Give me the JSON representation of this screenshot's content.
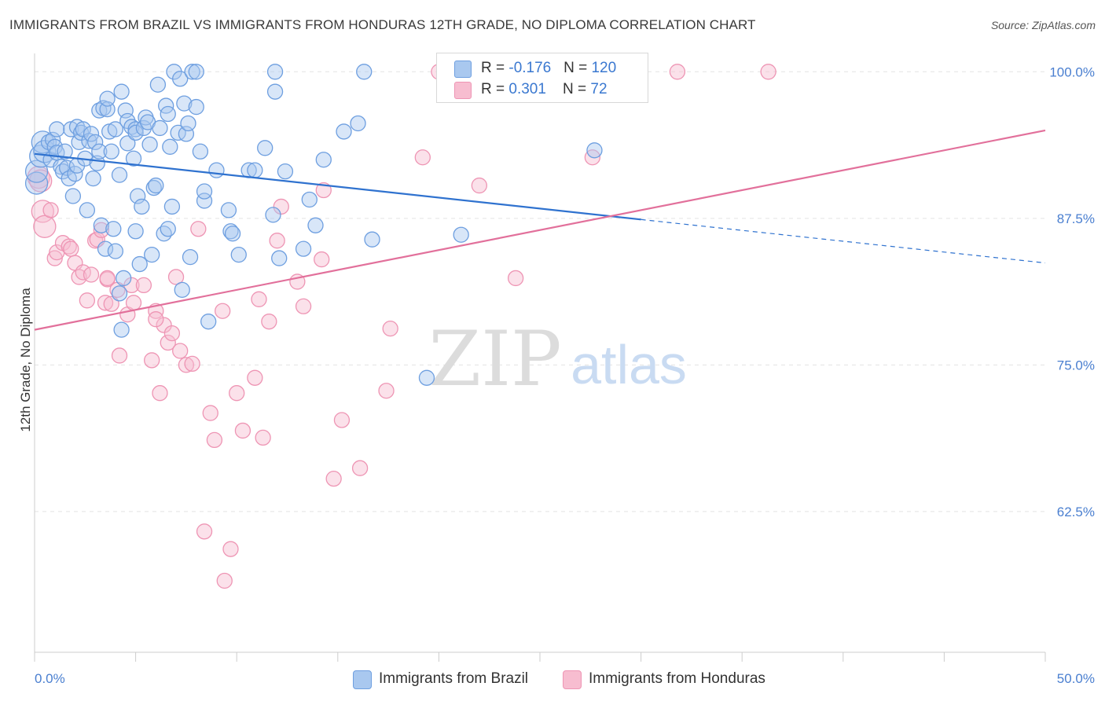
{
  "title": "IMMIGRANTS FROM BRAZIL VS IMMIGRANTS FROM HONDURAS 12TH GRADE, NO DIPLOMA CORRELATION CHART",
  "source": "Source: ZipAtlas.com",
  "watermark": {
    "zip": "ZIP",
    "atlas": "atlas"
  },
  "legend": {
    "rows": [
      {
        "r_label": "R = ",
        "r_value": "-0.176",
        "n_label": "N = ",
        "n_value": "120"
      },
      {
        "r_label": "R = ",
        "r_value": "0.301",
        "n_label": "N = ",
        "n_value": "72"
      }
    ]
  },
  "bottom_legend": [
    {
      "label": "Immigrants from Brazil"
    },
    {
      "label": "Immigrants from Honduras"
    }
  ],
  "colors": {
    "brazil_fill": "#a9c8ef",
    "brazil_stroke": "#6e9fe0",
    "brazil_line": "#2f72cf",
    "honduras_fill": "#f7bdd0",
    "honduras_stroke": "#ee95b4",
    "honduras_line": "#e2709b",
    "tick_label": "#4a7fd0",
    "grid": "#e3e3e3"
  },
  "chart_data": {
    "type": "scatter",
    "title": "IMMIGRANTS FROM BRAZIL VS IMMIGRANTS FROM HONDURAS 12TH GRADE, NO DIPLOMA CORRELATION CHART",
    "xlabel": "",
    "ylabel": "12th Grade, No Diploma",
    "xlim": [
      0,
      50
    ],
    "ylim": [
      50.5,
      102.5
    ],
    "x_tick_labels": [
      "0.0%",
      "50.0%"
    ],
    "y_ticks": [
      62.5,
      75.0,
      87.5,
      100.0
    ],
    "y_tick_labels": [
      "62.5%",
      "75.0%",
      "87.5%",
      "100.0%"
    ],
    "grid": true,
    "legend_position": "top-center",
    "series": [
      {
        "name": "Immigrants from Brazil",
        "r": -0.176,
        "n": 120,
        "trend": {
          "x": [
            0,
            30,
            50
          ],
          "y": [
            93.0,
            87.4,
            83.7
          ],
          "solid_until_x": 30
        },
        "points": [
          [
            0.1,
            90.5
          ],
          [
            0.1,
            91.5
          ],
          [
            0.3,
            92.8
          ],
          [
            0.4,
            94.0
          ],
          [
            0.5,
            93.2
          ],
          [
            0.7,
            94.0
          ],
          [
            0.8,
            92.5
          ],
          [
            0.9,
            94.2
          ],
          [
            1.0,
            93.6
          ],
          [
            1.1,
            93.1
          ],
          [
            1.1,
            95.1
          ],
          [
            1.3,
            91.9
          ],
          [
            1.4,
            91.5
          ],
          [
            1.5,
            93.2
          ],
          [
            1.6,
            91.8
          ],
          [
            1.7,
            90.9
          ],
          [
            1.8,
            95.1
          ],
          [
            1.9,
            89.4
          ],
          [
            2.0,
            91.3
          ],
          [
            2.1,
            92.0
          ],
          [
            2.1,
            95.3
          ],
          [
            2.2,
            94.0
          ],
          [
            2.3,
            94.8
          ],
          [
            2.4,
            95.1
          ],
          [
            2.5,
            92.6
          ],
          [
            2.6,
            88.2
          ],
          [
            2.7,
            94.1
          ],
          [
            2.8,
            94.7
          ],
          [
            2.9,
            90.9
          ],
          [
            3.0,
            94.0
          ],
          [
            3.1,
            92.2
          ],
          [
            3.2,
            96.7
          ],
          [
            3.2,
            93.2
          ],
          [
            3.3,
            86.9
          ],
          [
            3.4,
            96.9
          ],
          [
            3.5,
            84.9
          ],
          [
            3.6,
            96.8
          ],
          [
            3.6,
            97.7
          ],
          [
            3.7,
            94.9
          ],
          [
            3.8,
            93.2
          ],
          [
            3.9,
            86.6
          ],
          [
            4.0,
            84.7
          ],
          [
            4.0,
            95.1
          ],
          [
            4.2,
            91.2
          ],
          [
            4.2,
            81.1
          ],
          [
            4.3,
            98.3
          ],
          [
            4.3,
            78.0
          ],
          [
            4.4,
            82.4
          ],
          [
            4.5,
            96.7
          ],
          [
            4.6,
            93.9
          ],
          [
            4.6,
            95.8
          ],
          [
            4.8,
            95.3
          ],
          [
            4.9,
            92.6
          ],
          [
            5.0,
            95.1
          ],
          [
            5.0,
            94.8
          ],
          [
            5.0,
            86.4
          ],
          [
            5.1,
            89.4
          ],
          [
            5.2,
            83.6
          ],
          [
            5.3,
            88.5
          ],
          [
            5.4,
            95.2
          ],
          [
            5.5,
            96.1
          ],
          [
            5.6,
            95.7
          ],
          [
            5.7,
            93.8
          ],
          [
            5.8,
            84.4
          ],
          [
            5.9,
            90.1
          ],
          [
            6.0,
            90.3
          ],
          [
            6.1,
            98.9
          ],
          [
            6.2,
            95.2
          ],
          [
            6.4,
            86.2
          ],
          [
            6.5,
            97.1
          ],
          [
            6.6,
            86.6
          ],
          [
            6.6,
            96.4
          ],
          [
            6.7,
            93.6
          ],
          [
            6.8,
            88.5
          ],
          [
            6.9,
            100.0
          ],
          [
            7.1,
            94.8
          ],
          [
            7.2,
            99.4
          ],
          [
            7.3,
            81.4
          ],
          [
            7.4,
            97.3
          ],
          [
            7.5,
            94.7
          ],
          [
            7.6,
            95.6
          ],
          [
            7.7,
            84.2
          ],
          [
            7.8,
            100.0
          ],
          [
            8.0,
            97.0
          ],
          [
            8.0,
            100.0
          ],
          [
            8.2,
            93.2
          ],
          [
            8.4,
            89.0
          ],
          [
            8.4,
            89.8
          ],
          [
            8.6,
            78.7
          ],
          [
            9.0,
            91.6
          ],
          [
            9.6,
            88.2
          ],
          [
            9.7,
            86.4
          ],
          [
            9.8,
            86.2
          ],
          [
            10.1,
            84.4
          ],
          [
            10.6,
            91.6
          ],
          [
            10.9,
            91.6
          ],
          [
            11.4,
            93.5
          ],
          [
            11.8,
            87.8
          ],
          [
            11.9,
            98.3
          ],
          [
            11.9,
            100.0
          ],
          [
            12.1,
            84.1
          ],
          [
            12.4,
            91.5
          ],
          [
            13.3,
            84.9
          ],
          [
            13.6,
            89.1
          ],
          [
            13.9,
            86.9
          ],
          [
            14.3,
            92.5
          ],
          [
            15.3,
            94.9
          ],
          [
            16.0,
            95.6
          ],
          [
            16.3,
            100.0
          ],
          [
            16.7,
            85.7
          ],
          [
            19.4,
            73.9
          ],
          [
            21.1,
            86.1
          ],
          [
            27.7,
            93.3
          ]
        ]
      },
      {
        "name": "Immigrants from Honduras",
        "r": 0.301,
        "n": 72,
        "trend": {
          "x": [
            0,
            50
          ],
          "y": [
            78.0,
            95.0
          ]
        },
        "points": [
          [
            0.2,
            91.0
          ],
          [
            0.3,
            90.7
          ],
          [
            0.4,
            88.1
          ],
          [
            0.5,
            86.8
          ],
          [
            0.8,
            88.2
          ],
          [
            1.0,
            84.1
          ],
          [
            1.1,
            84.6
          ],
          [
            1.4,
            85.4
          ],
          [
            1.7,
            85.1
          ],
          [
            1.8,
            84.9
          ],
          [
            2.0,
            83.7
          ],
          [
            2.2,
            82.5
          ],
          [
            2.4,
            82.9
          ],
          [
            2.6,
            80.5
          ],
          [
            2.8,
            82.7
          ],
          [
            3.0,
            85.6
          ],
          [
            3.1,
            85.7
          ],
          [
            3.3,
            86.5
          ],
          [
            3.5,
            80.3
          ],
          [
            3.6,
            82.3
          ],
          [
            3.8,
            80.2
          ],
          [
            4.1,
            81.4
          ],
          [
            4.2,
            75.8
          ],
          [
            4.6,
            79.3
          ],
          [
            4.8,
            81.8
          ],
          [
            4.9,
            80.3
          ],
          [
            5.4,
            81.8
          ],
          [
            5.8,
            75.4
          ],
          [
            6.0,
            79.6
          ],
          [
            6.2,
            72.6
          ],
          [
            6.4,
            78.4
          ],
          [
            6.6,
            76.9
          ],
          [
            6.8,
            77.7
          ],
          [
            7.0,
            82.5
          ],
          [
            7.2,
            76.2
          ],
          [
            7.5,
            75.0
          ],
          [
            7.8,
            75.1
          ],
          [
            8.1,
            86.6
          ],
          [
            8.4,
            60.8
          ],
          [
            8.7,
            70.9
          ],
          [
            8.9,
            68.6
          ],
          [
            9.3,
            79.6
          ],
          [
            9.4,
            56.6
          ],
          [
            9.7,
            59.3
          ],
          [
            10.0,
            72.6
          ],
          [
            10.3,
            69.4
          ],
          [
            10.9,
            73.9
          ],
          [
            11.1,
            80.6
          ],
          [
            11.3,
            68.8
          ],
          [
            11.6,
            78.7
          ],
          [
            12.0,
            85.6
          ],
          [
            12.2,
            88.5
          ],
          [
            13.0,
            82.1
          ],
          [
            13.3,
            80.0
          ],
          [
            14.2,
            84.0
          ],
          [
            14.3,
            89.9
          ],
          [
            14.8,
            65.3
          ],
          [
            15.2,
            70.3
          ],
          [
            16.1,
            66.2
          ],
          [
            17.4,
            72.8
          ],
          [
            17.6,
            78.1
          ],
          [
            19.2,
            92.7
          ],
          [
            20.0,
            100.0
          ],
          [
            22.0,
            90.3
          ],
          [
            23.8,
            82.4
          ],
          [
            27.6,
            92.7
          ],
          [
            27.8,
            100.0
          ],
          [
            28.6,
            100.0
          ],
          [
            31.8,
            100.0
          ],
          [
            36.3,
            100.0
          ],
          [
            3.6,
            82.4
          ],
          [
            6.0,
            78.9
          ]
        ]
      }
    ]
  }
}
